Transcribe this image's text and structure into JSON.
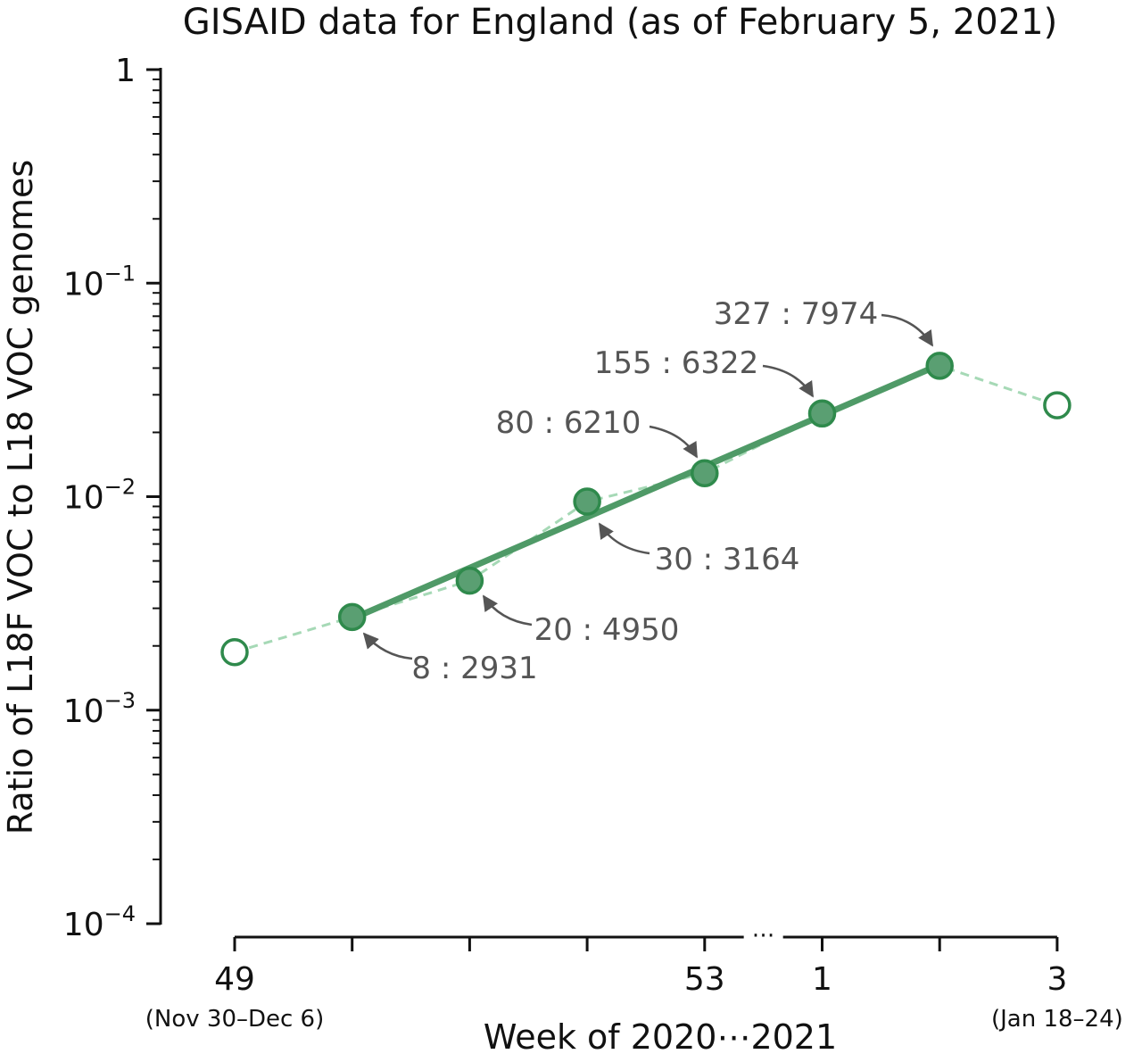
{
  "chart_data": {
    "type": "line",
    "title": "GISAID data for England (as of February 5, 2021)",
    "xlabel": "Week of 2020⋯2021",
    "ylabel": "Ratio of L18F VOC to L18 VOC genomes",
    "yscale": "log",
    "ylim": [
      0.0001,
      1
    ],
    "y_ticks": [
      {
        "value": 1,
        "base": "1",
        "exp": ""
      },
      {
        "value": 0.1,
        "base": "10",
        "exp": "−1"
      },
      {
        "value": 0.01,
        "base": "10",
        "exp": "−2"
      },
      {
        "value": 0.001,
        "base": "10",
        "exp": "−3"
      },
      {
        "value": 0.0001,
        "base": "10",
        "exp": "−4"
      }
    ],
    "x_ticks": [
      {
        "label": "49",
        "sublabel": "(Nov 30–Dec 6)"
      },
      {
        "label": "",
        "sublabel": ""
      },
      {
        "label": "",
        "sublabel": ""
      },
      {
        "label": "",
        "sublabel": ""
      },
      {
        "label": "53",
        "sublabel": ""
      },
      {
        "label": "1",
        "sublabel": ""
      },
      {
        "label": "",
        "sublabel": ""
      },
      {
        "label": "3",
        "sublabel": "(Jan 18–24)"
      }
    ],
    "axis_break_marker": "⋯",
    "series": [
      {
        "style": "observed",
        "points": [
          {
            "week": "49",
            "ratio": 0.00187,
            "filled": false,
            "label": ""
          },
          {
            "week": "50",
            "ratio": 0.00273,
            "filled": true,
            "label": "8 : 2931"
          },
          {
            "week": "51",
            "ratio": 0.00404,
            "filled": true,
            "label": "20 : 4950"
          },
          {
            "week": "52",
            "ratio": 0.00948,
            "filled": true,
            "label": "30 : 3164"
          },
          {
            "week": "53",
            "ratio": 0.01288,
            "filled": true,
            "label": "80 : 6210"
          },
          {
            "week": "1",
            "ratio": 0.02452,
            "filled": true,
            "label": "155 : 6322"
          },
          {
            "week": "2",
            "ratio": 0.04101,
            "filled": true,
            "label": "327 : 7974"
          },
          {
            "week": "3",
            "ratio": 0.0268,
            "filled": false,
            "label": ""
          }
        ]
      },
      {
        "style": "fit",
        "start": {
          "week": "50",
          "ratio": 0.00268
        },
        "end": {
          "week": "2",
          "ratio": 0.0415
        }
      }
    ],
    "colors": {
      "fit_line": "#4f9a67",
      "marker_edge": "#2f8a4c",
      "marker_fill": "#5a9f72",
      "dashed_line": "#a6d9b6",
      "annotation": "#555555",
      "axis": "#111111"
    },
    "grid": false,
    "legend": "none"
  }
}
